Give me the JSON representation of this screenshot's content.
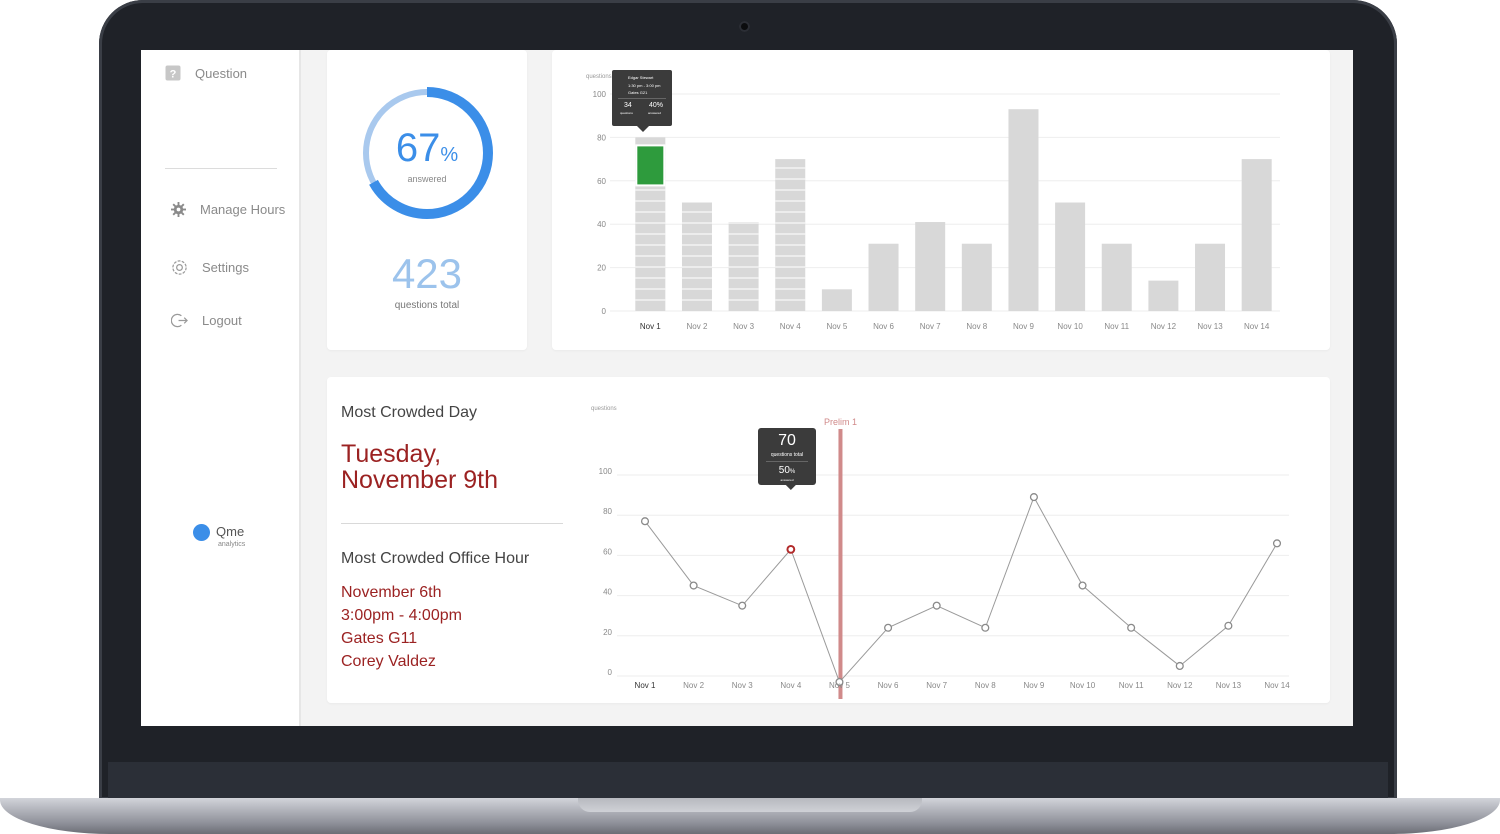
{
  "sidebar": {
    "items": [
      {
        "label": "Question",
        "icon": "question-icon"
      },
      {
        "label": "Manage Hours",
        "icon": "gear-icon"
      },
      {
        "label": "Settings",
        "icon": "settings-icon"
      },
      {
        "label": "Logout",
        "icon": "logout-icon"
      }
    ],
    "logo": {
      "text": "Qme",
      "sub": "analytics"
    }
  },
  "summary": {
    "percent": "67",
    "percent_unit": "%",
    "percent_label": "answered",
    "percent_value": 0.67,
    "total": "423",
    "total_label": "questions total"
  },
  "bar_tooltip": {
    "name": "Edgar Stewart",
    "time": "1:30 pm - 3:00 pm",
    "location": "Gates G21",
    "questions": "34",
    "questions_label": "questions",
    "answered": "40%",
    "answered_label": "answered"
  },
  "line_tooltip": {
    "total": "70",
    "total_label": "questions total",
    "answered": "50",
    "answered_unit": "%",
    "answered_label": "answered"
  },
  "crowded": {
    "day_title": "Most Crowded Day",
    "day_line1": "Tuesday,",
    "day_line2": "November 9th",
    "hour_title": "Most Crowded Office Hour",
    "hour_date": "November 6th",
    "hour_time": "3:00pm - 4:00pm",
    "hour_location": "Gates G11",
    "hour_person": "Corey Valdez"
  },
  "colors": {
    "accent": "#3b8ee8",
    "ring_light": "#a9c9ee",
    "bar": "#d8d8d8",
    "bar_highlight": "#2e9b3d",
    "dark_red": "#9b2222",
    "prelim": "#d08a8a",
    "tooltip_bg": "#3b3b3b"
  },
  "chart_data": [
    {
      "type": "bar",
      "ylabel": "questions",
      "categories": [
        "Nov 1",
        "Nov 2",
        "Nov 3",
        "Nov 4",
        "Nov 5",
        "Nov 6",
        "Nov 7",
        "Nov 8",
        "Nov 9",
        "Nov 10",
        "Nov 11",
        "Nov 12",
        "Nov 13",
        "Nov 14"
      ],
      "values": [
        80,
        50,
        41,
        70,
        10,
        31,
        41,
        31,
        93,
        50,
        31,
        14,
        31,
        70
      ],
      "yticks": [
        0,
        20,
        40,
        60,
        80,
        100
      ],
      "ylim": [
        0,
        100
      ],
      "highlight_index": 0,
      "grid": true
    },
    {
      "type": "line",
      "ylabel": "questions",
      "categories": [
        "Nov 1",
        "Nov 2",
        "Nov 3",
        "Nov 4",
        "Nov 5",
        "Nov 6",
        "Nov 7",
        "Nov 8",
        "Nov 9",
        "Nov 10",
        "Nov 11",
        "Nov 12",
        "Nov 13",
        "Nov 14"
      ],
      "values": [
        77,
        45,
        35,
        63,
        -3,
        24,
        35,
        24,
        89,
        45,
        24,
        5,
        25,
        66
      ],
      "yticks": [
        0,
        20,
        40,
        60,
        80,
        100
      ],
      "ylim": [
        -9,
        100
      ],
      "highlight_index": 3,
      "annotation": {
        "label": "Prelim 1",
        "at_index": 4
      },
      "grid": true
    }
  ]
}
